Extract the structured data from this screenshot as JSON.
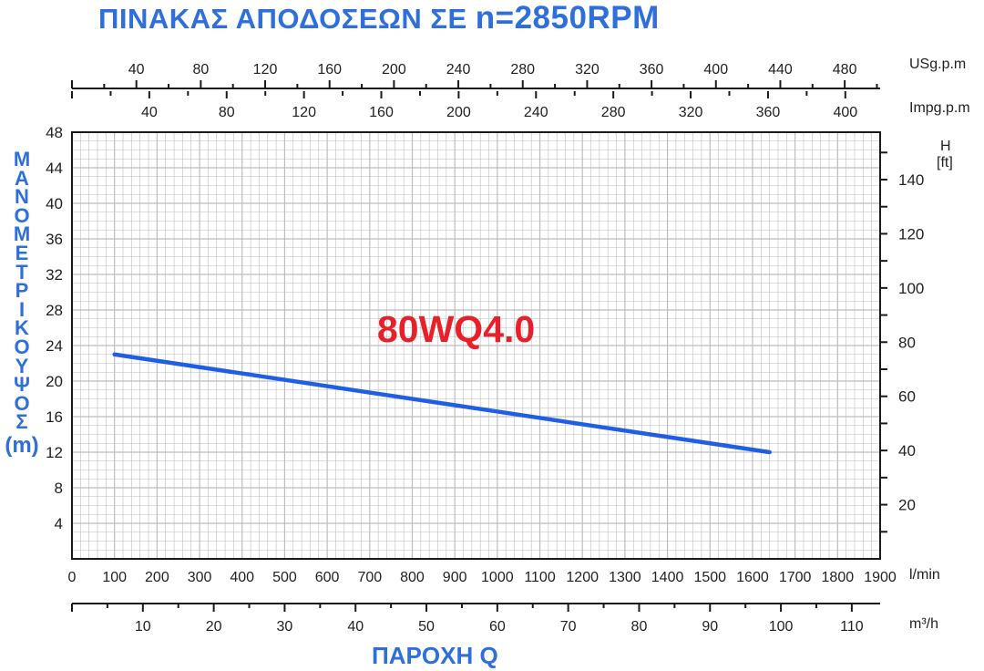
{
  "title": {
    "prefix": "ΠΙΝΑΚΑΣ ΑΠΟΔΟΣΕΩΝ ΣΕ ",
    "speed": "n=2850RPM"
  },
  "model_label": "80WQ4.0",
  "colors": {
    "blue": "#2f6fdb",
    "curve": "#1f5fe6",
    "model": "#e8202a",
    "grid": "#bdbdbd",
    "axis": "#1a1a1a"
  },
  "chart_data": {
    "type": "line",
    "title": "ΠΙΝΑΚΑΣ ΑΠΟΔΟΣΕΩΝ ΣΕ n=2850RPM",
    "xlabel": "ΠΑΡΟΧΗ Q",
    "ylabel": "ΜΑΝΟΜΕΤΡΙΚΟ ΥΨΟΣ (m)",
    "ylabel_letters": [
      "Μ",
      "Α",
      "Ν",
      "Ο",
      "Μ",
      "Ε",
      "Τ",
      "Ρ",
      "Ι",
      "Κ",
      "Ο",
      "Υ",
      "Ψ",
      "Ο",
      "Σ"
    ],
    "ylabel_unit": "(m)",
    "xlim": [
      0,
      1900
    ],
    "ylim": [
      0,
      48
    ],
    "grid": true,
    "series": [
      {
        "name": "80WQ4.0",
        "x": [
          100,
          1640
        ],
        "y": [
          23,
          12
        ]
      }
    ],
    "axes": {
      "x_lmin": {
        "unit": "l/min",
        "ticks": [
          0,
          100,
          200,
          300,
          400,
          500,
          600,
          700,
          800,
          900,
          1000,
          1100,
          1200,
          1300,
          1400,
          1500,
          1600,
          1700,
          1800,
          1900
        ]
      },
      "x_m3h": {
        "unit": "m³/h",
        "ticks": [
          10,
          20,
          30,
          40,
          50,
          60,
          70,
          80,
          90,
          100,
          110
        ],
        "range": [
          0,
          114
        ]
      },
      "x_usgpm": {
        "unit": "USg.p.m",
        "ticks": [
          40,
          80,
          120,
          160,
          200,
          240,
          280,
          320,
          360,
          400,
          440,
          480
        ],
        "range": [
          0,
          502
        ]
      },
      "x_impgpm": {
        "unit": "Impg.p.m",
        "ticks": [
          40,
          80,
          120,
          160,
          200,
          240,
          280,
          320,
          360,
          400
        ],
        "range": [
          0,
          418
        ]
      },
      "y_m": {
        "ticks": [
          4,
          8,
          12,
          16,
          20,
          24,
          28,
          32,
          36,
          40,
          44,
          48
        ]
      },
      "y_ft": {
        "unit_line1": "H",
        "unit_line2": "[ft]",
        "ticks": [
          20,
          40,
          60,
          80,
          100,
          120,
          140
        ],
        "range": [
          0,
          157.5
        ]
      }
    }
  }
}
